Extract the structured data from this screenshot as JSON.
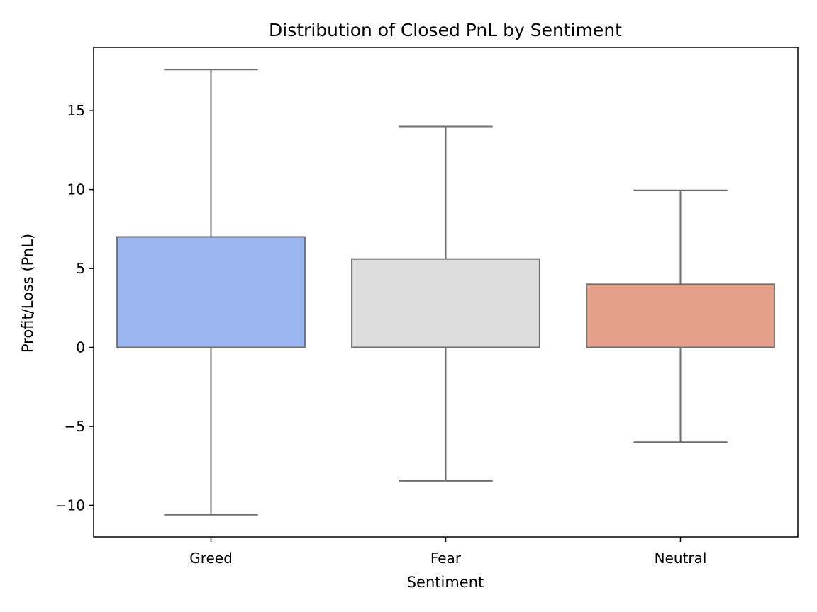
{
  "chart_data": {
    "type": "box",
    "title": "Distribution of Closed PnL by Sentiment",
    "xlabel": "Sentiment",
    "ylabel": "Profit/Loss (PnL)",
    "ylim": [
      -12,
      19
    ],
    "yticks": [
      -10,
      -5,
      0,
      5,
      10,
      15
    ],
    "ytick_labels": [
      "−10",
      "−5",
      "0",
      "5",
      "10",
      "15"
    ],
    "grid": false,
    "legend": "none",
    "categories": [
      "Greed",
      "Fear",
      "Neutral"
    ],
    "boxes": [
      {
        "category": "Greed",
        "whisker_low": -10.6,
        "q1": 0,
        "median": 0,
        "q3": 7.0,
        "whisker_high": 17.6,
        "color": "#9bb5f0"
      },
      {
        "category": "Fear",
        "whisker_low": -8.45,
        "q1": 0,
        "median": 0,
        "q3": 5.6,
        "whisker_high": 14.0,
        "color": "#dddddd"
      },
      {
        "category": "Neutral",
        "whisker_low": -6.0,
        "q1": 0,
        "median": 0,
        "q3": 4.0,
        "whisker_high": 9.95,
        "color": "#e4a08b"
      }
    ],
    "line_color": "#6f6f6f"
  }
}
